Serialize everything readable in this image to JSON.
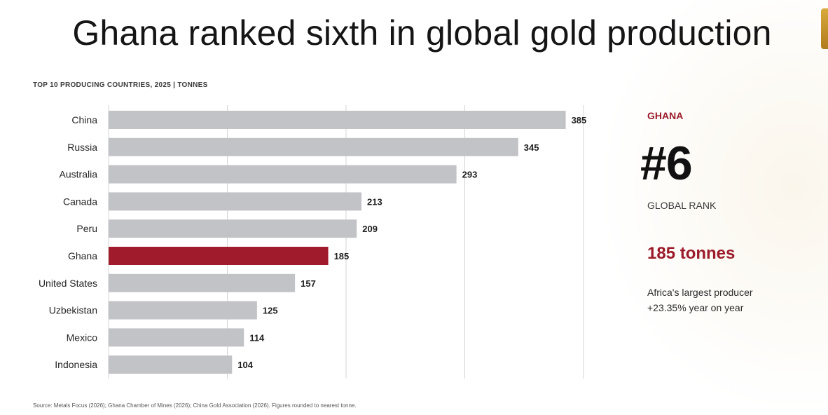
{
  "title": "Ghana ranked sixth in global gold production",
  "chart_data": {
    "type": "bar",
    "orientation": "horizontal",
    "subtitle": "TOP 10 PRODUCING COUNTRIES, 2025 | TONNES",
    "categories": [
      "China",
      "Russia",
      "Australia",
      "Canada",
      "Peru",
      "Ghana",
      "United States",
      "Uzbekistan",
      "Mexico",
      "Indonesia"
    ],
    "values": [
      385,
      345,
      293,
      213,
      209,
      185,
      157,
      125,
      114,
      104
    ],
    "highlight": "Ghana",
    "xlim": [
      0,
      400
    ],
    "grid": true,
    "colors": {
      "bar": "#c2c3c7",
      "highlight": "#a01b2c",
      "grid": "#d4d4d4"
    }
  },
  "callout": {
    "kicker": "GHANA",
    "rank": "#6",
    "rank_label": "GLOBAL RANK",
    "amount": "185 tonnes",
    "note_line1": "Africa's largest producer",
    "note_line2": "+23.35% year on year"
  },
  "source": "Source: Metals Focus (2026); Ghana Chamber of Mines (2026); China Gold Association (2026). Figures rounded to nearest tonne."
}
